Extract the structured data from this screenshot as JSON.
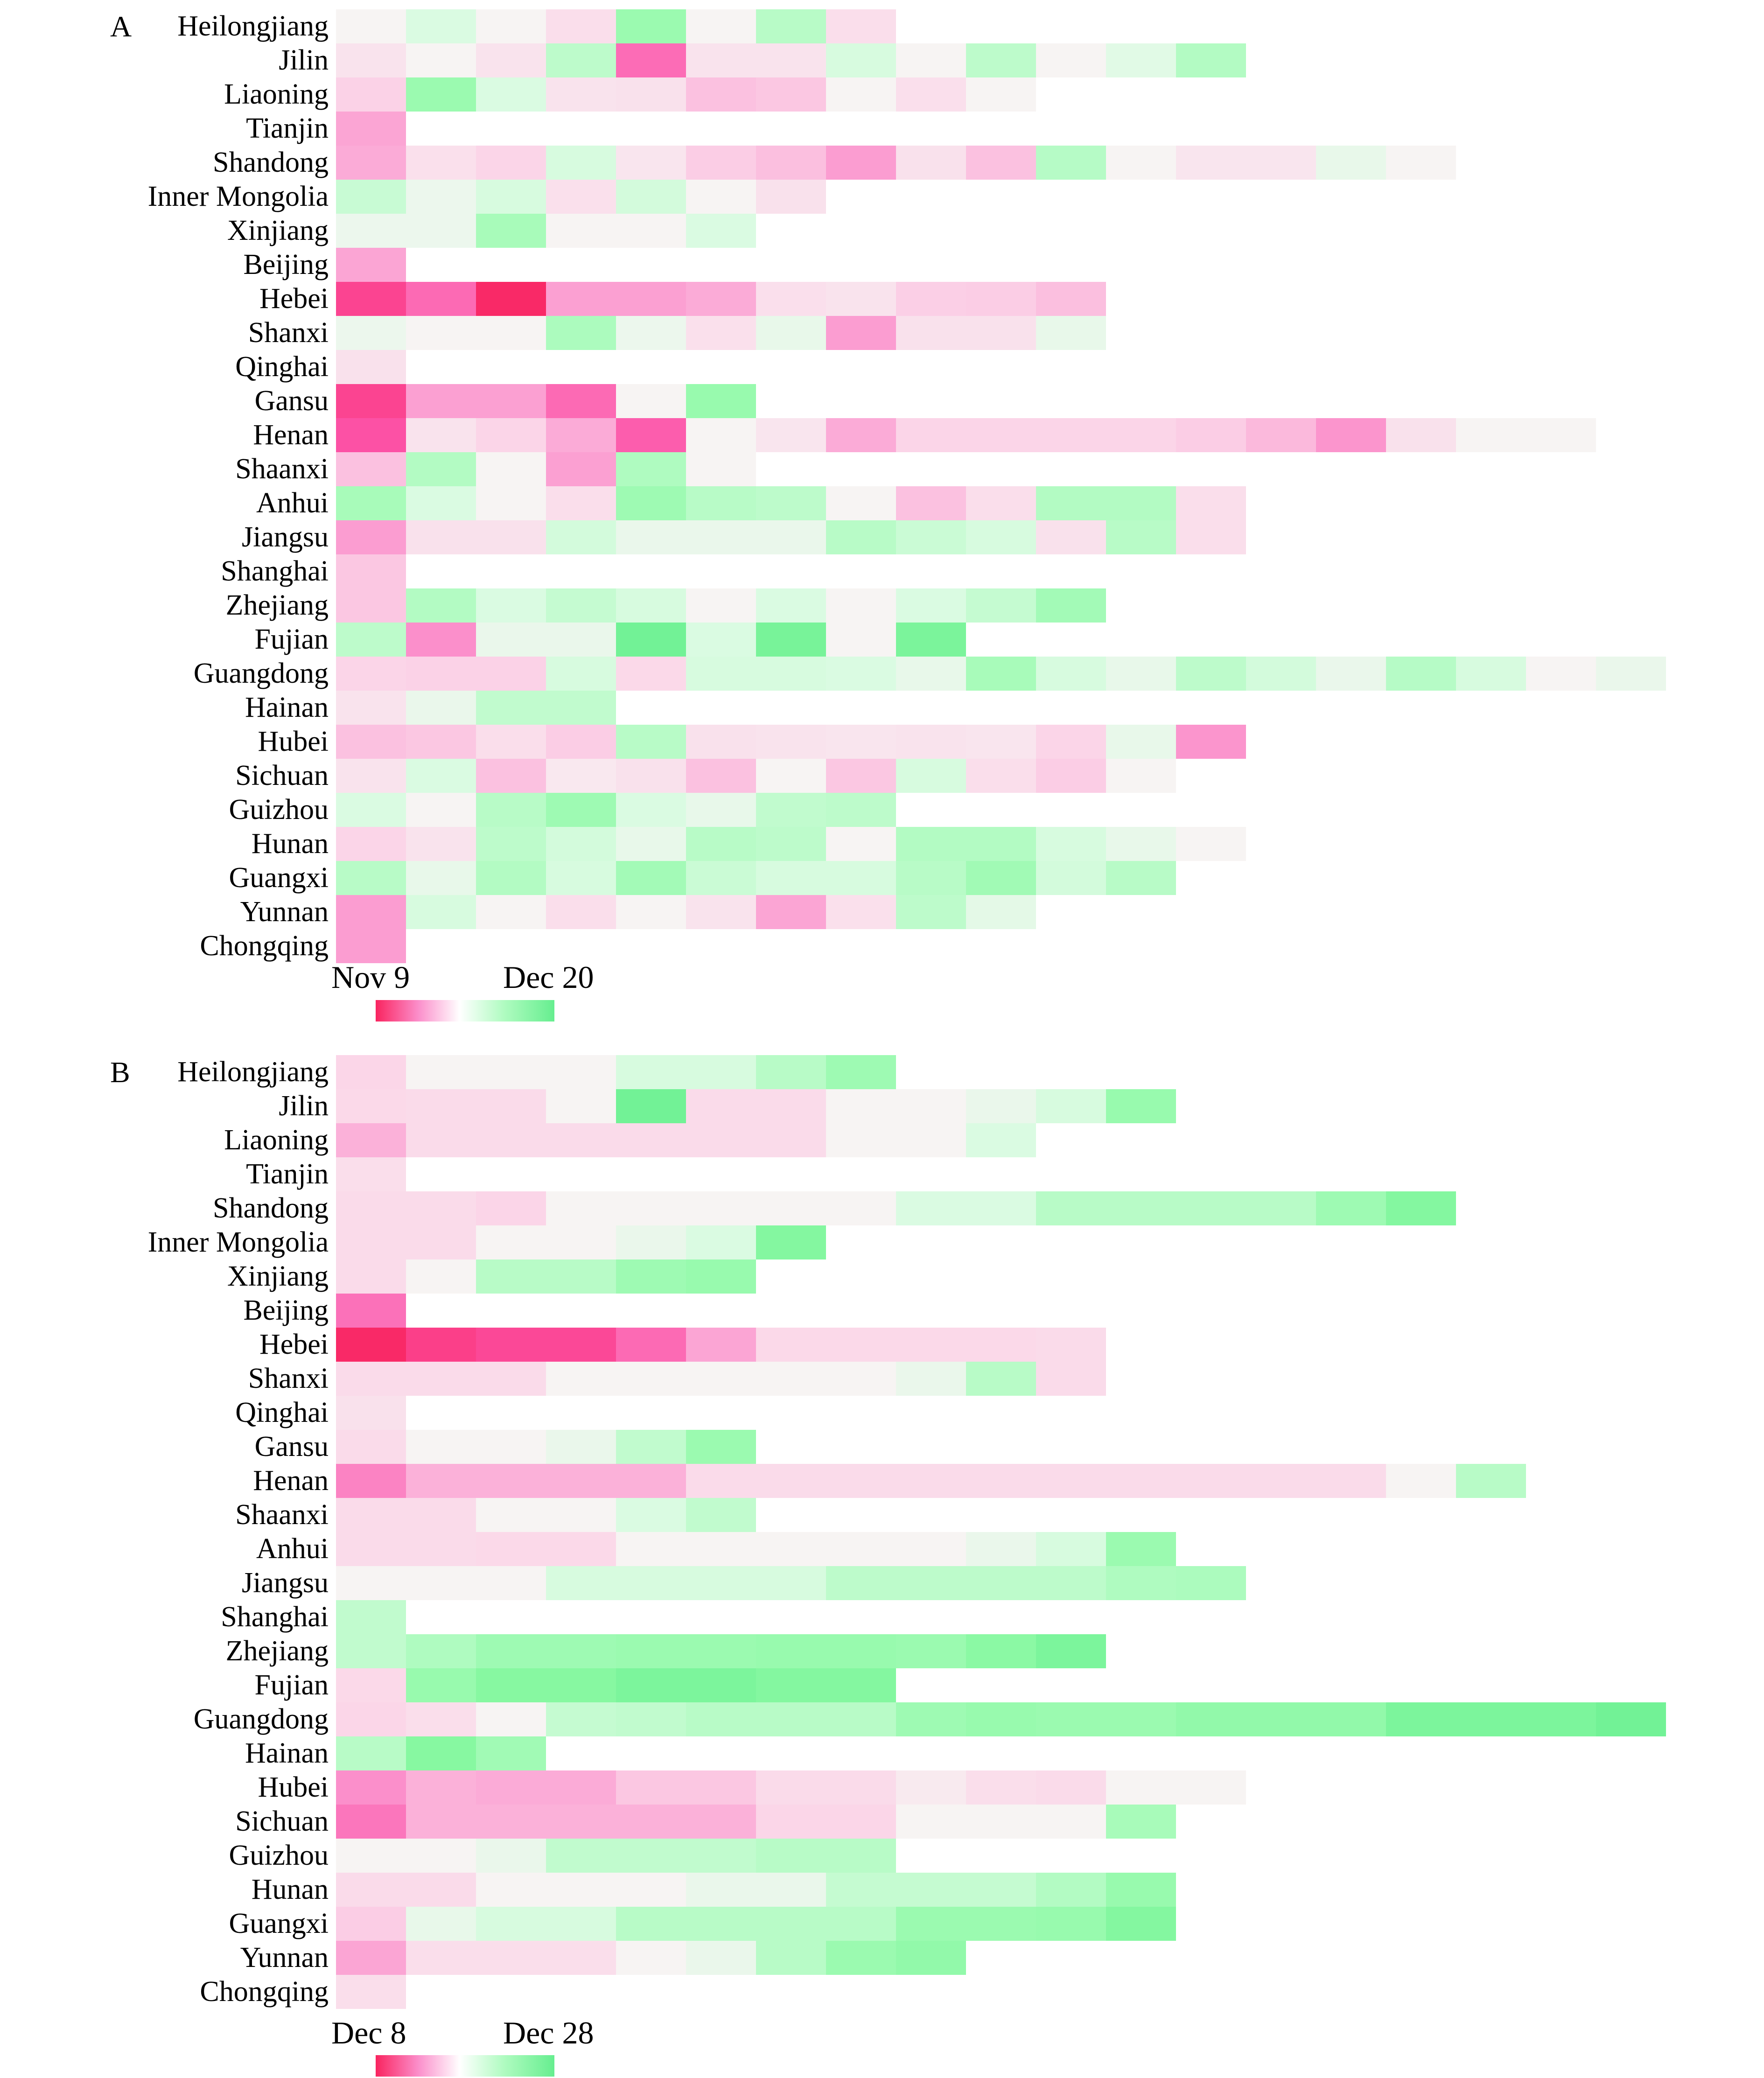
{
  "figure": {
    "background_color": "#ffffff",
    "description": "Two province-by-date heatmap panels (A and B) with pink-to-green diverging colormap"
  },
  "chart_data": [
    {
      "type": "heatmap",
      "panel": "A",
      "value_scale": "signed colormap position from -100 (deep pink, earliest) through 0 (neutral) to +100 (deep green, latest)",
      "legend": {
        "start_label": "Nov 9",
        "end_label": "Dec 20"
      },
      "colormap": {
        "pink_stops": [
          "#F7F4F3",
          "#FBD5E8",
          "#FB8FCB",
          "#FC51A5",
          "#F9245F"
        ],
        "green_stops": [
          "#F7F4F3",
          "#DCFBE3",
          "#AFFBC0",
          "#8BF9A4",
          "#66EE8F"
        ],
        "legend_gradient": [
          "#F9245F",
          "#FB8FCB",
          "#FFFFFF",
          "#AFFBC0",
          "#66EE8F"
        ]
      },
      "rows": [
        {
          "label": "Heilongjiang",
          "values": [
            0,
            26,
            0,
            -18,
            64,
            0,
            45,
            -18
          ]
        },
        {
          "label": "Jilin",
          "values": [
            -14,
            0,
            -14,
            42,
            -64,
            -14,
            -14,
            28,
            0,
            42,
            0,
            20,
            48
          ]
        },
        {
          "label": "Liaoning",
          "values": [
            -26,
            64,
            26,
            -14,
            -15,
            -32,
            -30,
            0,
            -17,
            0
          ]
        },
        {
          "label": "Tianjin",
          "values": [
            -42
          ]
        },
        {
          "label": "Shandong",
          "values": [
            -40,
            -16,
            -25,
            28,
            -12,
            -28,
            -33,
            -45,
            -15,
            -32,
            46,
            0,
            -12,
            -12,
            14,
            0
          ]
        },
        {
          "label": "Inner Mongolia",
          "values": [
            36,
            10,
            28,
            -16,
            30,
            0,
            -15
          ]
        },
        {
          "label": "Xinjiang",
          "values": [
            10,
            10,
            55,
            0,
            0,
            26
          ]
        },
        {
          "label": "Beijing",
          "values": [
            -42
          ]
        },
        {
          "label": "Hebei",
          "values": [
            -82,
            -65,
            -97,
            -44,
            -44,
            -40,
            -17,
            -14,
            -27,
            -28,
            -33
          ]
        },
        {
          "label": "Shanxi",
          "values": [
            10,
            0,
            0,
            52,
            10,
            -16,
            14,
            -45,
            -15,
            -15,
            14
          ]
        },
        {
          "label": "Qinghai",
          "values": [
            -15
          ]
        },
        {
          "label": "Gansu",
          "values": [
            -82,
            -44,
            -44,
            -65,
            0,
            66
          ]
        },
        {
          "label": "Henan",
          "values": [
            -75,
            -14,
            -25,
            -40,
            -70,
            0,
            -12,
            -40,
            -25,
            -25,
            -25,
            -25,
            -28,
            -35,
            -48,
            -15,
            0,
            0
          ]
        },
        {
          "label": "Shaanxi",
          "values": [
            -32,
            48,
            0,
            -44,
            50,
            0
          ]
        },
        {
          "label": "Anhui",
          "values": [
            55,
            26,
            0,
            -18,
            62,
            45,
            42,
            0,
            -32,
            -18,
            48,
            48,
            -18
          ]
        },
        {
          "label": "Jiangsu",
          "values": [
            -45,
            -15,
            -15,
            30,
            12,
            12,
            12,
            45,
            35,
            28,
            -15,
            45,
            -18
          ]
        },
        {
          "label": "Shanghai",
          "values": [
            -30
          ]
        },
        {
          "label": "Zhejiang",
          "values": [
            -30,
            48,
            26,
            38,
            28,
            0,
            26,
            0,
            26,
            38,
            58
          ]
        },
        {
          "label": "Fujian",
          "values": [
            42,
            -50,
            12,
            12,
            92,
            26,
            88,
            0,
            86
          ]
        },
        {
          "label": "Guangdong",
          "values": [
            -25,
            -26,
            -26,
            28,
            -22,
            28,
            28,
            26,
            14,
            55,
            28,
            14,
            42,
            30,
            12,
            46,
            28,
            0,
            12
          ]
        },
        {
          "label": "Hainan",
          "values": [
            -14,
            12,
            40,
            40
          ]
        },
        {
          "label": "Hubei",
          "values": [
            -32,
            -30,
            -18,
            -28,
            45,
            -15,
            -14,
            -12,
            -14,
            -12,
            -25,
            14,
            -48
          ]
        },
        {
          "label": "Sichuan",
          "values": [
            -14,
            26,
            -32,
            -10,
            -15,
            -32,
            0,
            -30,
            28,
            -18,
            -28,
            0
          ]
        },
        {
          "label": "Guizhou",
          "values": [
            26,
            0,
            45,
            62,
            26,
            14,
            40,
            42
          ]
        },
        {
          "label": "Hunan",
          "values": [
            -25,
            -14,
            42,
            30,
            14,
            45,
            42,
            0,
            48,
            48,
            28,
            14,
            0
          ]
        },
        {
          "label": "Guangxi",
          "values": [
            45,
            14,
            48,
            28,
            58,
            35,
            28,
            28,
            45,
            60,
            30,
            45
          ]
        },
        {
          "label": "Yunnan",
          "values": [
            -45,
            28,
            0,
            -18,
            0,
            -14,
            -42,
            -16,
            42,
            18
          ]
        },
        {
          "label": "Chongqing",
          "values": [
            -45
          ]
        }
      ]
    },
    {
      "type": "heatmap",
      "panel": "B",
      "value_scale": "signed colormap position from -100 (deep pink, earliest) through 0 (neutral) to +100 (deep green, latest)",
      "legend": {
        "start_label": "Dec 8",
        "end_label": "Dec 28"
      },
      "colormap": {
        "pink_stops": [
          "#F7F4F3",
          "#FBD5E8",
          "#FB8FCB",
          "#FC51A5",
          "#F9245F"
        ],
        "green_stops": [
          "#F7F4F3",
          "#DCFBE3",
          "#AFFBC0",
          "#8BF9A4",
          "#66EE8F"
        ],
        "legend_gradient": [
          "#F9245F",
          "#FB8FCB",
          "#FFFFFF",
          "#AFFBC0",
          "#66EE8F"
        ]
      },
      "rows": [
        {
          "label": "Heilongjiang",
          "values": [
            -24,
            0,
            0,
            0,
            28,
            28,
            45,
            62
          ]
        },
        {
          "label": "Jilin",
          "values": [
            -22,
            -20,
            -20,
            0,
            92,
            -20,
            -20,
            0,
            0,
            12,
            28,
            66
          ]
        },
        {
          "label": "Liaoning",
          "values": [
            -38,
            -20,
            -20,
            -20,
            -20,
            -20,
            -20,
            0,
            0,
            26
          ]
        },
        {
          "label": "Tianjin",
          "values": [
            -18
          ]
        },
        {
          "label": "Shandong",
          "values": [
            -20,
            -20,
            -25,
            0,
            0,
            0,
            0,
            0,
            26,
            26,
            45,
            45,
            45,
            45,
            62,
            80
          ]
        },
        {
          "label": "Inner Mongolia",
          "values": [
            -20,
            -20,
            0,
            0,
            12,
            26,
            80
          ]
        },
        {
          "label": "Xinjiang",
          "values": [
            -20,
            0,
            45,
            45,
            62,
            66
          ]
        },
        {
          "label": "Beijing",
          "values": [
            -62
          ]
        },
        {
          "label": "Hebei",
          "values": [
            -97,
            -85,
            -80,
            -80,
            -65,
            -42,
            -22,
            -22,
            -22,
            -22,
            -20
          ]
        },
        {
          "label": "Shanxi",
          "values": [
            -20,
            -20,
            -20,
            0,
            0,
            0,
            0,
            0,
            12,
            45,
            -20
          ]
        },
        {
          "label": "Qinghai",
          "values": [
            -15
          ]
        },
        {
          "label": "Gansu",
          "values": [
            -20,
            0,
            0,
            12,
            40,
            64
          ]
        },
        {
          "label": "Henan",
          "values": [
            -55,
            -38,
            -38,
            -38,
            -38,
            -20,
            -20,
            -20,
            -20,
            -20,
            -20,
            -20,
            -20,
            -20,
            -20,
            0,
            45
          ]
        },
        {
          "label": "Shaanxi",
          "values": [
            -20,
            -20,
            0,
            0,
            26,
            40
          ]
        },
        {
          "label": "Anhui",
          "values": [
            -20,
            -20,
            -22,
            -22,
            0,
            0,
            0,
            0,
            0,
            12,
            28,
            64
          ]
        },
        {
          "label": "Jiangsu",
          "values": [
            0,
            0,
            0,
            28,
            28,
            28,
            28,
            42,
            42,
            42,
            42,
            50,
            52
          ]
        },
        {
          "label": "Shanghai",
          "values": [
            40
          ]
        },
        {
          "label": "Zhejiang",
          "values": [
            40,
            50,
            62,
            62,
            64,
            64,
            66,
            66,
            64,
            75,
            85
          ]
        },
        {
          "label": "Fujian",
          "values": [
            -22,
            66,
            78,
            78,
            85,
            85,
            80,
            80
          ]
        },
        {
          "label": "Guangdong",
          "values": [
            -24,
            -18,
            0,
            38,
            40,
            45,
            45,
            45,
            62,
            66,
            64,
            64,
            70,
            70,
            70,
            85,
            85,
            85,
            92
          ]
        },
        {
          "label": "Hainan",
          "values": [
            45,
            78,
            60
          ]
        },
        {
          "label": "Hubei",
          "values": [
            -50,
            -38,
            -40,
            -40,
            -30,
            -30,
            -20,
            -20,
            -8,
            -18,
            -20,
            0,
            0
          ]
        },
        {
          "label": "Sichuan",
          "values": [
            -60,
            -38,
            -38,
            -38,
            -38,
            -38,
            -24,
            -24,
            0,
            0,
            0,
            55
          ]
        },
        {
          "label": "Guizhou",
          "values": [
            0,
            0,
            12,
            40,
            40,
            40,
            45,
            45
          ]
        },
        {
          "label": "Hunan",
          "values": [
            -20,
            -20,
            0,
            0,
            0,
            12,
            12,
            38,
            38,
            38,
            48,
            66
          ]
        },
        {
          "label": "Guangxi",
          "values": [
            -28,
            14,
            28,
            28,
            45,
            45,
            45,
            45,
            64,
            64,
            66,
            80
          ]
        },
        {
          "label": "Yunnan",
          "values": [
            -42,
            -18,
            -18,
            -18,
            0,
            12,
            45,
            64,
            70
          ]
        },
        {
          "label": "Chongqing",
          "values": [
            -18
          ]
        }
      ]
    }
  ]
}
